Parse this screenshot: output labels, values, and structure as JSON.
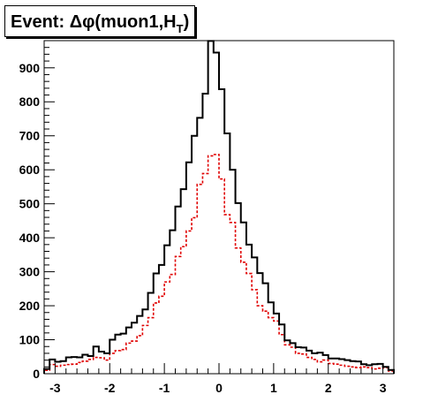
{
  "title": {
    "prefix": "Event: ",
    "delta": "Δ",
    "phi": "φ",
    "body": "(muon1,",
    "met_symbol": "H",
    "met_sub": "T",
    "close": ")"
  },
  "chart_data": {
    "type": "histogram",
    "xlim": [
      -3.2,
      3.2
    ],
    "ylim": [
      0,
      980
    ],
    "xticks": [
      -3,
      -2,
      -1,
      0,
      1,
      2,
      3
    ],
    "yticks": [
      0,
      100,
      200,
      300,
      400,
      500,
      600,
      700,
      800,
      900
    ],
    "grid": false,
    "bins": 64,
    "series": [
      {
        "style": "solid",
        "color": "#000000",
        "values": [
          14,
          42,
          35,
          37,
          48,
          49,
          48,
          56,
          52,
          80,
          65,
          60,
          100,
          115,
          118,
          136,
          150,
          170,
          189,
          238,
          295,
          320,
          378,
          422,
          492,
          543,
          622,
          700,
          753,
          824,
          979,
          945,
          837,
          707,
          600,
          502,
          445,
          380,
          342,
          296,
          266,
          210,
          177,
          145,
          98,
          90,
          78,
          77,
          68,
          60,
          62,
          55,
          45,
          45,
          43,
          40,
          37,
          36,
          28,
          25,
          28,
          29,
          20,
          11
        ]
      },
      {
        "style": "dashed",
        "color": "#e00000",
        "values": [
          10,
          27,
          22,
          25,
          27,
          28,
          33,
          37,
          42,
          48,
          47,
          40,
          60,
          68,
          71,
          90,
          96,
          112,
          142,
          165,
          208,
          228,
          270,
          292,
          345,
          374,
          420,
          459,
          557,
          589,
          641,
          645,
          573,
          468,
          445,
          370,
          328,
          295,
          247,
          200,
          184,
          165,
          155,
          115,
          85,
          78,
          60,
          58,
          48,
          42,
          35,
          40,
          30,
          28,
          25,
          22,
          20,
          18,
          20,
          18,
          14,
          16,
          18,
          8
        ]
      }
    ]
  }
}
